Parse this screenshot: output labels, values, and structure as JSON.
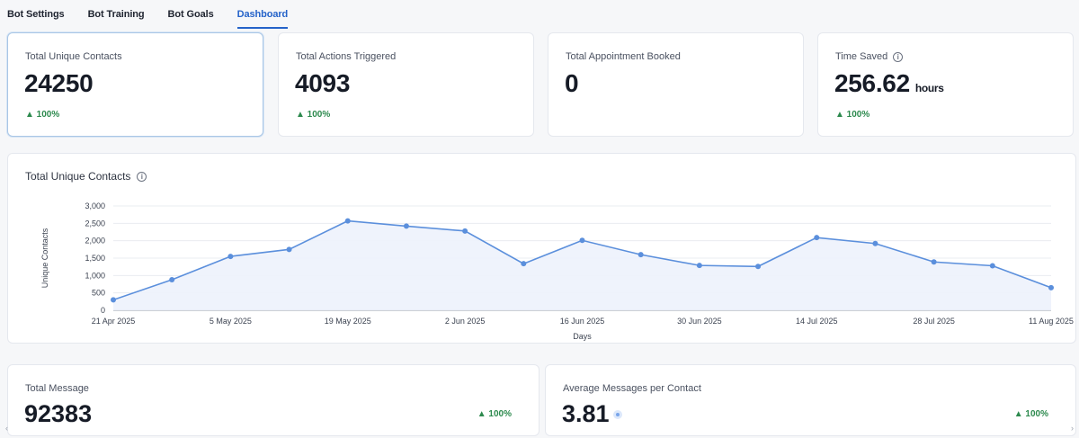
{
  "tabs": [
    {
      "label": "Bot Settings",
      "active": false
    },
    {
      "label": "Bot Training",
      "active": false
    },
    {
      "label": "Bot Goals",
      "active": false
    },
    {
      "label": "Dashboard",
      "active": true
    }
  ],
  "stats": [
    {
      "title": "Total Unique Contacts",
      "value": "24250",
      "unit": "",
      "change": "▲ 100%",
      "info": false
    },
    {
      "title": "Total Actions Triggered",
      "value": "4093",
      "unit": "",
      "change": "▲ 100%",
      "info": false
    },
    {
      "title": "Total Appointment Booked",
      "value": "0",
      "unit": "",
      "change": "",
      "info": false
    },
    {
      "title": "Time Saved",
      "value": "256.62",
      "unit": "hours",
      "change": "▲ 100%",
      "info": true
    }
  ],
  "chart_card": {
    "title": "Total Unique Contacts",
    "info_icon": "info-icon"
  },
  "chart_data": {
    "type": "area",
    "title": "Total Unique Contacts",
    "xlabel": "Days",
    "ylabel": "Unique Contacts",
    "ylim": [
      0,
      3000
    ],
    "y_ticks": [
      0,
      500,
      1000,
      1500,
      2000,
      2500,
      3000
    ],
    "y_tick_labels": [
      "0",
      "500",
      "1,000",
      "1,500",
      "2,000",
      "2,500",
      "3,000"
    ],
    "x_tick_labels": [
      "21 Apr 2025",
      "5 May 2025",
      "19 May 2025",
      "2 Jun 2025",
      "16 Jun 2025",
      "30 Jun 2025",
      "14 Jul 2025",
      "28 Jul 2025",
      "11 Aug 2025"
    ],
    "x": [
      "21 Apr 2025",
      "28 Apr 2025",
      "5 May 2025",
      "12 May 2025",
      "19 May 2025",
      "26 May 2025",
      "2 Jun 2025",
      "9 Jun 2025",
      "16 Jun 2025",
      "23 Jun 2025",
      "30 Jun 2025",
      "7 Jul 2025",
      "14 Jul 2025",
      "21 Jul 2025",
      "28 Jul 2025",
      "4 Aug 2025",
      "11 Aug 2025"
    ],
    "values": [
      300,
      880,
      1550,
      1750,
      2570,
      2420,
      2280,
      1340,
      2010,
      1600,
      1290,
      1260,
      2090,
      1920,
      1390,
      1280,
      650
    ],
    "grid": true,
    "colors": {
      "line": "#5b8fdc",
      "fill": "#edf2fc",
      "grid": "#e9ecf1"
    }
  },
  "bottom_cards": [
    {
      "title": "Total Message",
      "value": "92383",
      "change": "▲ 100%",
      "badge": false
    },
    {
      "title": "Average Messages per Contact",
      "value": "3.81",
      "change": "▲ 100%",
      "badge": true
    }
  ],
  "scroll": {
    "left": "‹",
    "right": "›"
  }
}
